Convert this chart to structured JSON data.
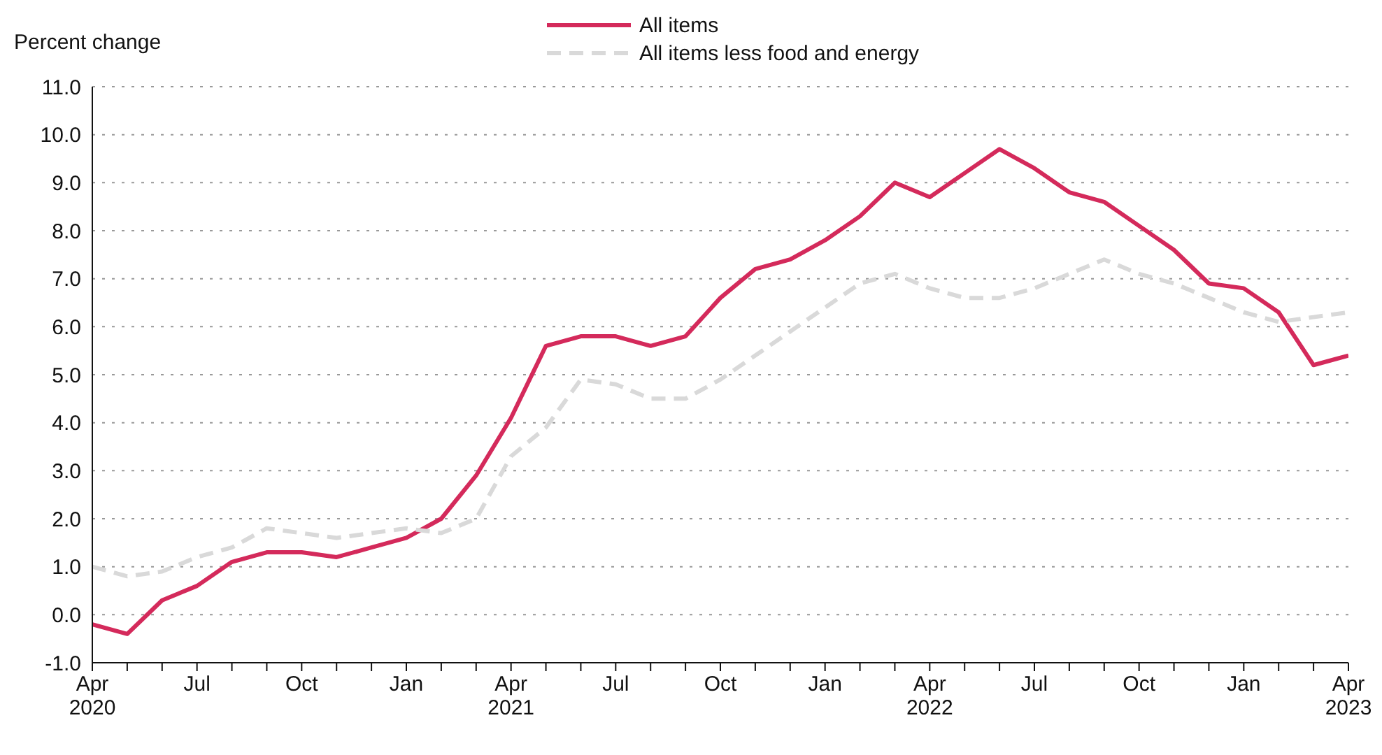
{
  "chart_data": {
    "type": "line",
    "ylabel": "Percent change",
    "x": [
      "2020-04",
      "2020-05",
      "2020-06",
      "2020-07",
      "2020-08",
      "2020-09",
      "2020-10",
      "2020-11",
      "2020-12",
      "2021-01",
      "2021-02",
      "2021-03",
      "2021-04",
      "2021-05",
      "2021-06",
      "2021-07",
      "2021-08",
      "2021-09",
      "2021-10",
      "2021-11",
      "2021-12",
      "2022-01",
      "2022-02",
      "2022-03",
      "2022-04",
      "2022-05",
      "2022-06",
      "2022-07",
      "2022-08",
      "2022-09",
      "2022-10",
      "2022-11",
      "2022-12",
      "2023-01",
      "2023-02",
      "2023-03",
      "2023-04"
    ],
    "series": [
      {
        "name": "All items",
        "color": "#d42a5b",
        "line_style": "solid",
        "values": [
          -0.2,
          -0.4,
          0.3,
          0.6,
          1.1,
          1.3,
          1.3,
          1.2,
          1.4,
          1.6,
          2.0,
          2.9,
          4.1,
          5.6,
          5.8,
          5.8,
          5.6,
          5.8,
          6.6,
          7.2,
          7.4,
          7.8,
          8.3,
          9.0,
          8.7,
          9.2,
          9.7,
          9.3,
          8.8,
          8.6,
          8.1,
          7.6,
          6.9,
          6.8,
          6.3,
          5.2,
          5.4
        ]
      },
      {
        "name": "All items less food and energy",
        "color": "#d9d9d9",
        "line_style": "dashed",
        "values": [
          1.0,
          0.8,
          0.9,
          1.2,
          1.4,
          1.8,
          1.7,
          1.6,
          1.7,
          1.8,
          1.7,
          2.0,
          3.3,
          3.9,
          4.9,
          4.8,
          4.5,
          4.5,
          4.9,
          5.4,
          5.9,
          6.4,
          6.9,
          7.1,
          6.8,
          6.6,
          6.6,
          6.8,
          7.1,
          7.4,
          7.1,
          6.9,
          6.6,
          6.3,
          6.1,
          6.2,
          6.3
        ]
      }
    ],
    "xlim": [
      "2020-04",
      "2023-04"
    ],
    "xticks": [
      {
        "value": "2020-04",
        "label": "Apr\n2020"
      },
      {
        "value": "2020-05",
        "label": null
      },
      {
        "value": "2020-06",
        "label": null
      },
      {
        "value": "2020-07",
        "label": "Jul"
      },
      {
        "value": "2020-08",
        "label": null
      },
      {
        "value": "2020-09",
        "label": null
      },
      {
        "value": "2020-10",
        "label": "Oct"
      },
      {
        "value": "2020-11",
        "label": null
      },
      {
        "value": "2020-12",
        "label": null
      },
      {
        "value": "2021-01",
        "label": "Jan"
      },
      {
        "value": "2021-02",
        "label": null
      },
      {
        "value": "2021-03",
        "label": null
      },
      {
        "value": "2021-04",
        "label": "Apr\n2021"
      },
      {
        "value": "2021-05",
        "label": null
      },
      {
        "value": "2021-06",
        "label": null
      },
      {
        "value": "2021-07",
        "label": "Jul"
      },
      {
        "value": "2021-08",
        "label": null
      },
      {
        "value": "2021-09",
        "label": null
      },
      {
        "value": "2021-10",
        "label": "Oct"
      },
      {
        "value": "2021-11",
        "label": null
      },
      {
        "value": "2021-12",
        "label": null
      },
      {
        "value": "2022-01",
        "label": "Jan"
      },
      {
        "value": "2022-02",
        "label": null
      },
      {
        "value": "2022-03",
        "label": null
      },
      {
        "value": "2022-04",
        "label": "Apr\n2022"
      },
      {
        "value": "2022-05",
        "label": null
      },
      {
        "value": "2022-06",
        "label": null
      },
      {
        "value": "2022-07",
        "label": "Jul"
      },
      {
        "value": "2022-08",
        "label": null
      },
      {
        "value": "2022-09",
        "label": null
      },
      {
        "value": "2022-10",
        "label": "Oct"
      },
      {
        "value": "2022-11",
        "label": null
      },
      {
        "value": "2022-12",
        "label": null
      },
      {
        "value": "2023-01",
        "label": "Jan"
      },
      {
        "value": "2023-02",
        "label": null
      },
      {
        "value": "2023-03",
        "label": null
      },
      {
        "value": "2023-04",
        "label": "Apr\n2023"
      }
    ],
    "ylim": [
      -1,
      11
    ],
    "yticks": [
      {
        "value": -1,
        "label": "-1.0"
      },
      {
        "value": 0,
        "label": "0.0"
      },
      {
        "value": 1,
        "label": "1.0"
      },
      {
        "value": 2,
        "label": "2.0"
      },
      {
        "value": 3,
        "label": "3.0"
      },
      {
        "value": 4,
        "label": "4.0"
      },
      {
        "value": 5,
        "label": "5.0"
      },
      {
        "value": 6,
        "label": "6.0"
      },
      {
        "value": 7,
        "label": "7.0"
      },
      {
        "value": 8,
        "label": "8.0"
      },
      {
        "value": 9,
        "label": "9.0"
      },
      {
        "value": 10,
        "label": "10.0"
      },
      {
        "value": 11,
        "label": "11.0"
      }
    ],
    "grid": "y",
    "legend": "top",
    "marker": "none"
  }
}
